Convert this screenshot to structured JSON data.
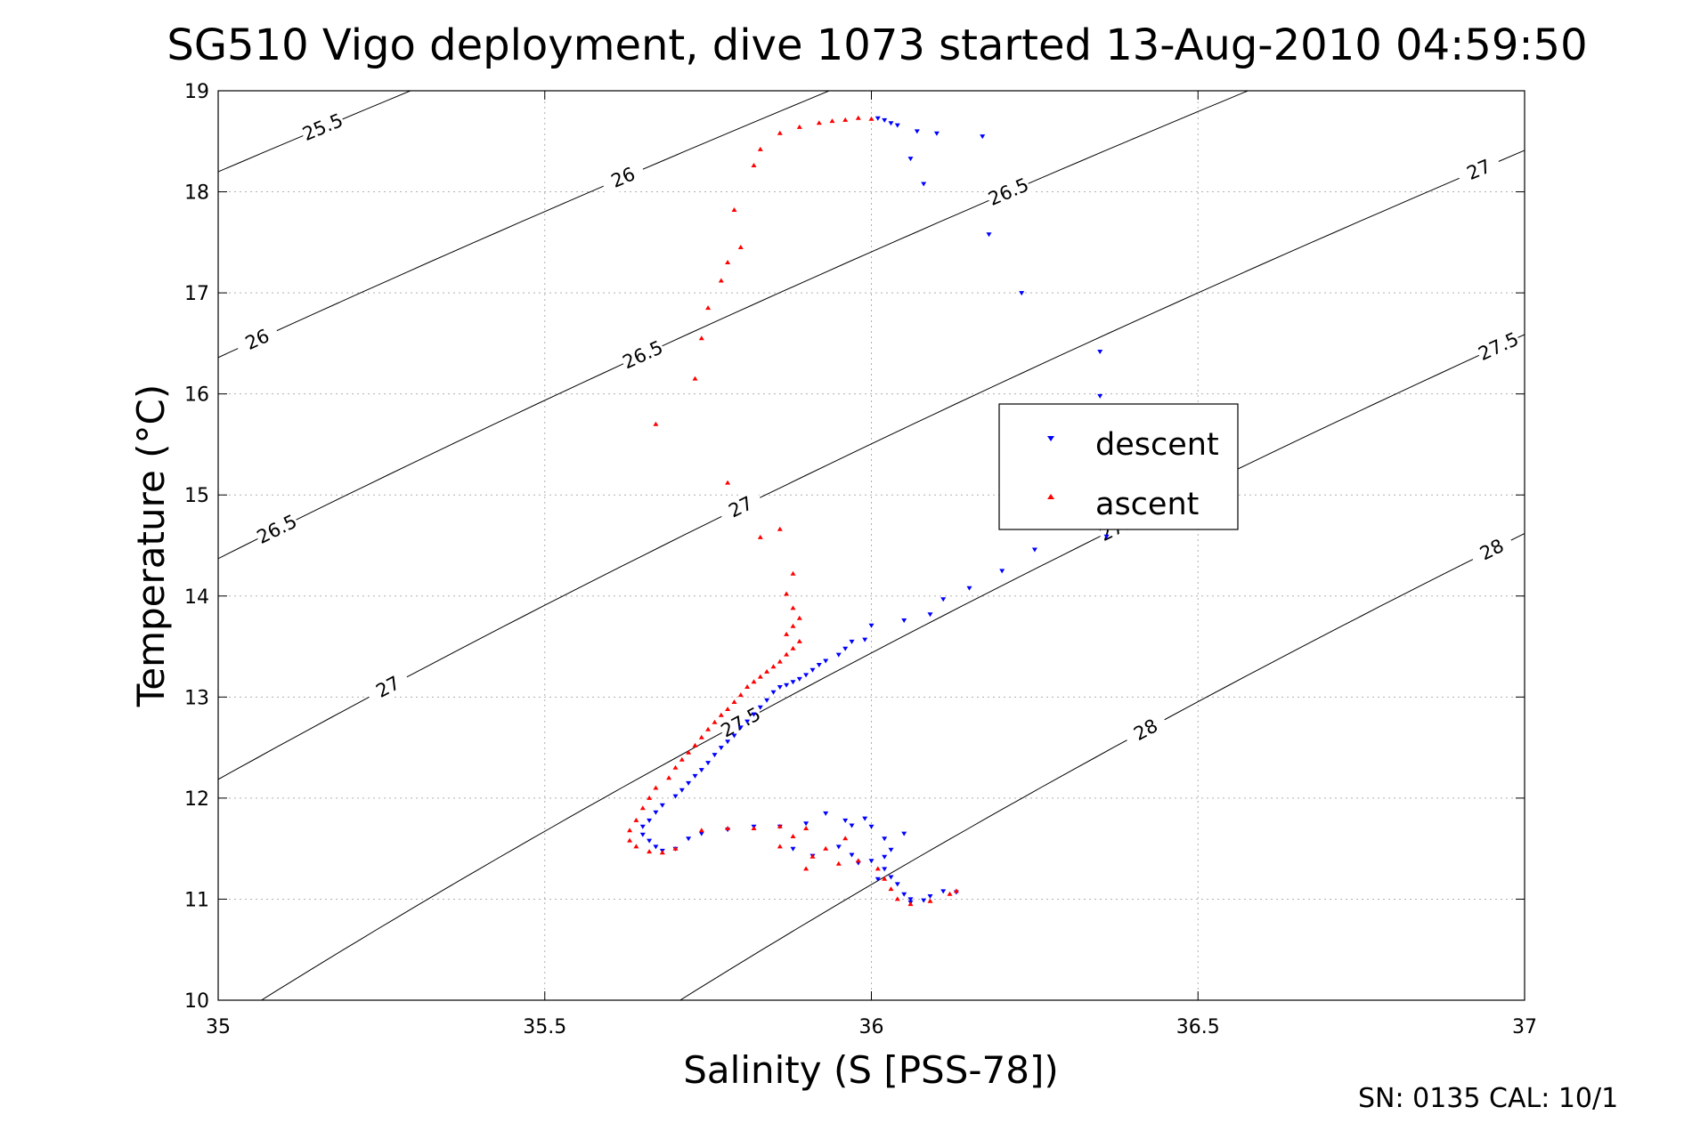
{
  "chart_data": {
    "type": "scatter",
    "title": "SG510 Vigo deployment, dive 1073 started 13-Aug-2010 04:59:50",
    "xlabel": "Salinity (S [PSS-78])",
    "ylabel": "Temperature (°C)",
    "xlim": [
      35,
      37
    ],
    "ylim": [
      10,
      19
    ],
    "x_ticks": [
      "35",
      "35.5",
      "36",
      "36.5",
      "37"
    ],
    "y_ticks": [
      "10",
      "11",
      "12",
      "13",
      "14",
      "15",
      "16",
      "17",
      "18",
      "19"
    ],
    "grid": true,
    "legend_position": "right",
    "footer": "SN: 0135  CAL: 10/1",
    "colors": {
      "descent": "#0000ff",
      "ascent": "#ff0000"
    },
    "series": [
      {
        "name": "descent",
        "marker": "triangle-down",
        "points": [
          [
            36.01,
            18.73
          ],
          [
            36.02,
            18.71
          ],
          [
            36.03,
            18.68
          ],
          [
            36.04,
            18.66
          ],
          [
            36.07,
            18.6
          ],
          [
            36.1,
            18.58
          ],
          [
            36.17,
            18.55
          ],
          [
            36.06,
            18.33
          ],
          [
            36.08,
            18.08
          ],
          [
            36.18,
            17.58
          ],
          [
            36.23,
            17.0
          ],
          [
            36.35,
            16.42
          ],
          [
            36.35,
            15.98
          ],
          [
            36.36,
            14.59
          ],
          [
            36.25,
            14.46
          ],
          [
            36.2,
            14.25
          ],
          [
            36.15,
            14.08
          ],
          [
            36.11,
            13.97
          ],
          [
            36.09,
            13.82
          ],
          [
            36.05,
            13.76
          ],
          [
            36.0,
            13.71
          ],
          [
            35.99,
            13.57
          ],
          [
            35.97,
            13.55
          ],
          [
            35.96,
            13.48
          ],
          [
            35.95,
            13.42
          ],
          [
            35.93,
            13.36
          ],
          [
            35.92,
            13.32
          ],
          [
            35.91,
            13.27
          ],
          [
            35.9,
            13.22
          ],
          [
            35.89,
            13.18
          ],
          [
            35.88,
            13.15
          ],
          [
            35.87,
            13.12
          ],
          [
            35.86,
            13.1
          ],
          [
            35.85,
            13.05
          ],
          [
            35.84,
            12.97
          ],
          [
            35.83,
            12.9
          ],
          [
            35.82,
            12.83
          ],
          [
            35.81,
            12.76
          ],
          [
            35.8,
            12.7
          ],
          [
            35.79,
            12.62
          ],
          [
            35.78,
            12.56
          ],
          [
            35.77,
            12.5
          ],
          [
            35.76,
            12.43
          ],
          [
            35.75,
            12.35
          ],
          [
            35.74,
            12.28
          ],
          [
            35.73,
            12.22
          ],
          [
            35.72,
            12.15
          ],
          [
            35.71,
            12.08
          ],
          [
            35.7,
            12.02
          ],
          [
            35.68,
            11.93
          ],
          [
            35.67,
            11.86
          ],
          [
            35.66,
            11.78
          ],
          [
            35.65,
            11.72
          ],
          [
            35.65,
            11.64
          ],
          [
            35.66,
            11.58
          ],
          [
            35.67,
            11.52
          ],
          [
            35.68,
            11.48
          ],
          [
            35.7,
            11.5
          ],
          [
            35.72,
            11.6
          ],
          [
            35.74,
            11.65
          ],
          [
            35.78,
            11.69
          ],
          [
            35.82,
            11.72
          ],
          [
            35.86,
            11.72
          ],
          [
            35.9,
            11.75
          ],
          [
            35.93,
            11.85
          ],
          [
            35.96,
            11.78
          ],
          [
            35.97,
            11.73
          ],
          [
            35.99,
            11.8
          ],
          [
            36.0,
            11.72
          ],
          [
            36.02,
            11.6
          ],
          [
            36.03,
            11.49
          ],
          [
            36.02,
            11.42
          ],
          [
            36.0,
            11.38
          ],
          [
            35.98,
            11.36
          ],
          [
            35.97,
            11.44
          ],
          [
            36.02,
            11.3
          ],
          [
            36.03,
            11.22
          ],
          [
            36.04,
            11.15
          ],
          [
            36.05,
            11.05
          ],
          [
            36.06,
            11.0
          ],
          [
            36.06,
            10.97
          ],
          [
            36.08,
            10.99
          ],
          [
            36.09,
            11.03
          ],
          [
            36.11,
            11.08
          ],
          [
            36.13,
            11.07
          ],
          [
            36.05,
            11.65
          ],
          [
            36.01,
            11.2
          ],
          [
            35.95,
            11.52
          ],
          [
            35.91,
            11.43
          ],
          [
            35.88,
            11.5
          ]
        ]
      },
      {
        "name": "ascent",
        "marker": "triangle-up",
        "points": [
          [
            36.0,
            18.72
          ],
          [
            35.98,
            18.73
          ],
          [
            35.96,
            18.71
          ],
          [
            35.94,
            18.7
          ],
          [
            35.92,
            18.68
          ],
          [
            35.89,
            18.64
          ],
          [
            35.86,
            18.58
          ],
          [
            35.83,
            18.42
          ],
          [
            35.82,
            18.26
          ],
          [
            35.79,
            17.82
          ],
          [
            35.8,
            17.45
          ],
          [
            35.78,
            17.3
          ],
          [
            35.77,
            17.12
          ],
          [
            35.75,
            16.85
          ],
          [
            35.74,
            16.55
          ],
          [
            35.73,
            16.15
          ],
          [
            35.67,
            15.7
          ],
          [
            35.78,
            15.12
          ],
          [
            35.83,
            14.58
          ],
          [
            35.86,
            14.66
          ],
          [
            35.88,
            14.22
          ],
          [
            35.87,
            14.02
          ],
          [
            35.88,
            13.88
          ],
          [
            35.89,
            13.78
          ],
          [
            35.88,
            13.7
          ],
          [
            35.87,
            13.62
          ],
          [
            35.89,
            13.55
          ],
          [
            35.88,
            13.48
          ],
          [
            35.87,
            13.42
          ],
          [
            35.86,
            13.35
          ],
          [
            35.85,
            13.3
          ],
          [
            35.84,
            13.25
          ],
          [
            35.83,
            13.2
          ],
          [
            35.82,
            13.15
          ],
          [
            35.81,
            13.1
          ],
          [
            35.8,
            13.02
          ],
          [
            35.79,
            12.95
          ],
          [
            35.78,
            12.88
          ],
          [
            35.77,
            12.82
          ],
          [
            35.76,
            12.75
          ],
          [
            35.75,
            12.68
          ],
          [
            35.74,
            12.6
          ],
          [
            35.73,
            12.52
          ],
          [
            35.72,
            12.45
          ],
          [
            35.71,
            12.38
          ],
          [
            35.7,
            12.3
          ],
          [
            35.69,
            12.2
          ],
          [
            35.67,
            12.1
          ],
          [
            35.66,
            12.0
          ],
          [
            35.65,
            11.9
          ],
          [
            35.64,
            11.78
          ],
          [
            35.63,
            11.68
          ],
          [
            35.63,
            11.58
          ],
          [
            35.64,
            11.52
          ],
          [
            35.66,
            11.47
          ],
          [
            35.68,
            11.46
          ],
          [
            35.7,
            11.5
          ],
          [
            35.74,
            11.68
          ],
          [
            35.78,
            11.7
          ],
          [
            35.82,
            11.7
          ],
          [
            35.86,
            11.72
          ],
          [
            35.9,
            11.7
          ],
          [
            35.88,
            11.62
          ],
          [
            35.86,
            11.52
          ],
          [
            35.91,
            11.42
          ],
          [
            35.9,
            11.3
          ],
          [
            35.95,
            11.35
          ],
          [
            35.98,
            11.38
          ],
          [
            36.01,
            11.3
          ],
          [
            36.02,
            11.2
          ],
          [
            36.03,
            11.1
          ],
          [
            36.04,
            11.0
          ],
          [
            36.06,
            10.95
          ],
          [
            36.09,
            10.98
          ],
          [
            36.12,
            11.05
          ],
          [
            36.13,
            11.08
          ],
          [
            35.96,
            11.6
          ],
          [
            35.93,
            11.5
          ]
        ]
      }
    ],
    "contours": [
      {
        "label": "25.5",
        "at_S": [
          35.16
        ]
      },
      {
        "label": "26",
        "at_S": [
          35.06,
          35.62,
          36.18
        ]
      },
      {
        "label": "26.5",
        "at_S": [
          35.09,
          35.65,
          36.21,
          36.77
        ]
      },
      {
        "label": "27",
        "at_S": [
          35.26,
          35.8,
          36.93
        ]
      },
      {
        "label": "27.5",
        "at_S": [
          35.8,
          36.38,
          36.96
        ]
      },
      {
        "label": "28",
        "at_S": [
          36.42,
          36.95
        ]
      }
    ]
  }
}
